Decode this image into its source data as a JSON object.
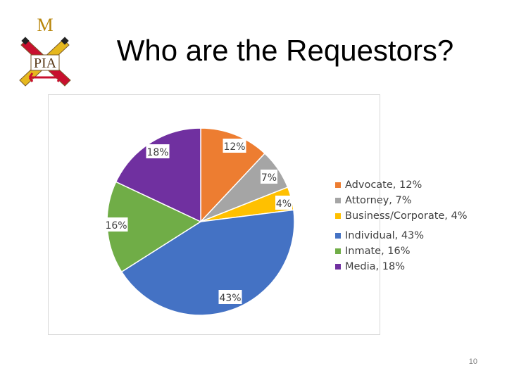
{
  "slide": {
    "title": "Who are the Requestors?",
    "page_number": "10",
    "logo": {
      "letters": "M",
      "text": "PIA"
    }
  },
  "chart_data": {
    "type": "pie",
    "categories": [
      "Advocate",
      "Attorney",
      "Business/Corporate",
      "Individual",
      "Inmate",
      "Media"
    ],
    "values": [
      12,
      7,
      4,
      43,
      16,
      18
    ],
    "data_labels": [
      "12%",
      "7%",
      "4%",
      "43%",
      "16%",
      "18%"
    ],
    "legend_labels": [
      "Advocate, 12%",
      "Attorney, 7%",
      "Business/Corporate, 4%",
      "Individual, 43%",
      "Inmate, 16%",
      "Media, 18%"
    ],
    "colors": [
      "#ed7d31",
      "#a5a5a5",
      "#ffc000",
      "#4472c4",
      "#70ad47",
      "#7030a0"
    ],
    "legend_position": "right",
    "title": ""
  }
}
